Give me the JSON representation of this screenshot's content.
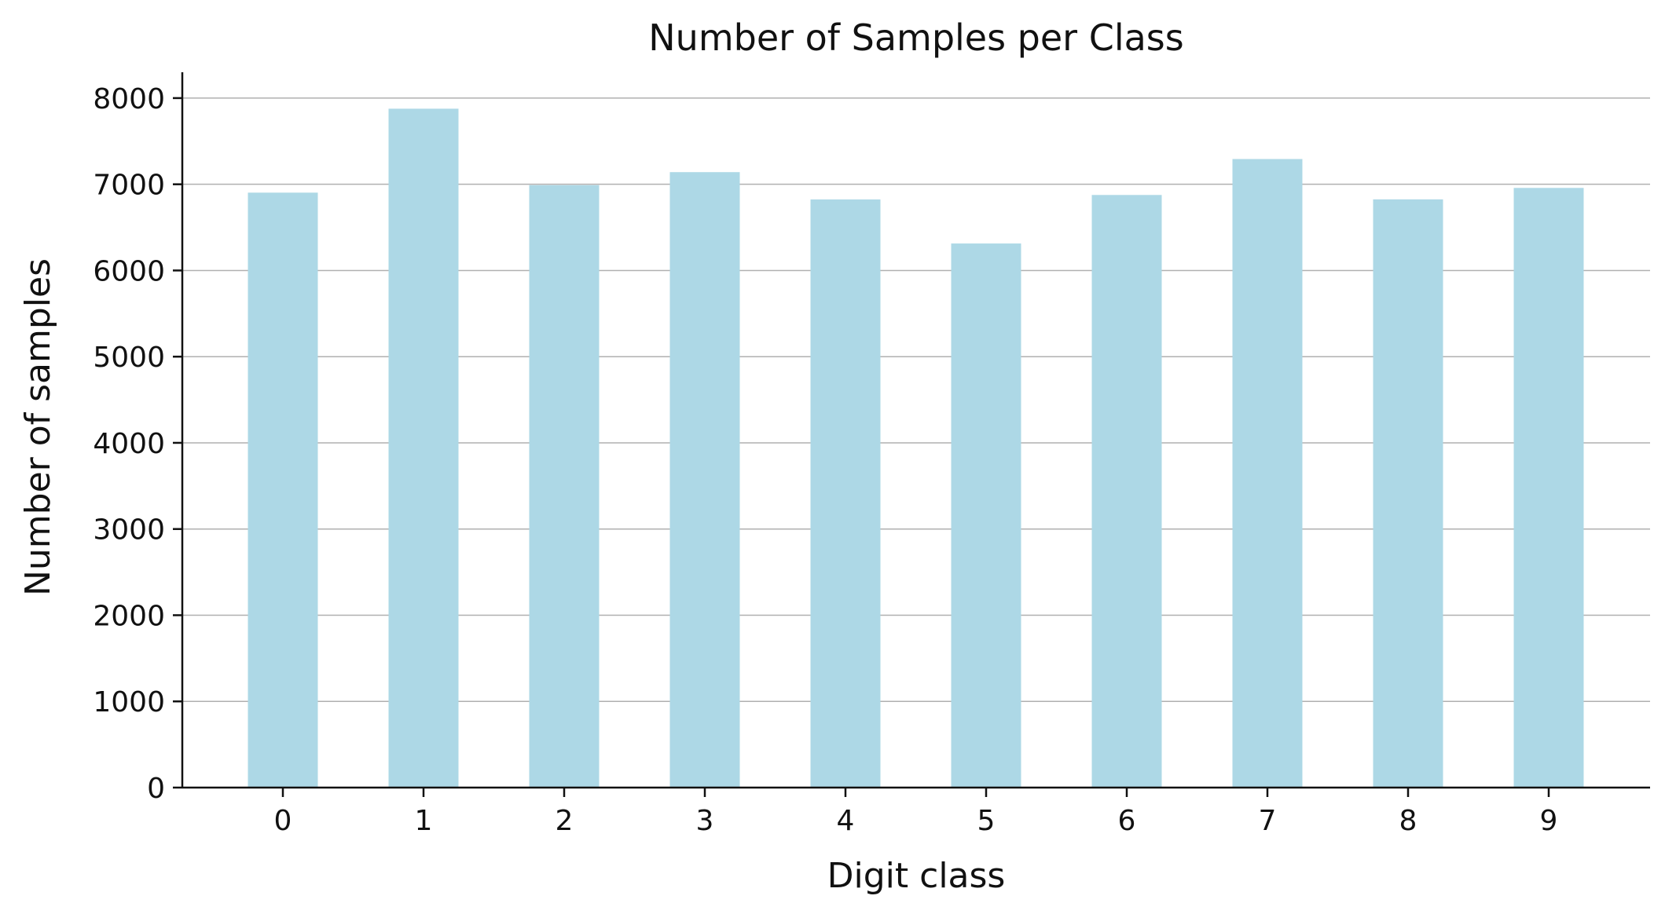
{
  "chart_data": {
    "type": "bar",
    "title": "Number of Samples per Class",
    "xlabel": "Digit class",
    "ylabel": "Number of samples",
    "categories": [
      "0",
      "1",
      "2",
      "3",
      "4",
      "5",
      "6",
      "7",
      "8",
      "9"
    ],
    "values": [
      6903,
      7877,
      6990,
      7141,
      6824,
      6313,
      6876,
      7293,
      6825,
      6958
    ],
    "ylim": [
      0,
      8300
    ],
    "yticks": [
      0,
      1000,
      2000,
      3000,
      4000,
      5000,
      6000,
      7000,
      8000
    ],
    "ytick_labels": [
      "0",
      "1000",
      "2000",
      "3000",
      "4000",
      "5000",
      "6000",
      "7000",
      "8000"
    ],
    "grid": "horizontal",
    "colors": {
      "bar": "#add8e6",
      "grid": "#b0b0b0",
      "axis": "#111111"
    }
  }
}
